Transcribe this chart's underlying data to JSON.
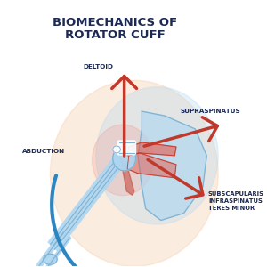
{
  "title_line1": "BIOMECHANICS OF",
  "title_line2": "ROTATOR CUFF",
  "title_color": "#1c2952",
  "title_fontsize": 9.5,
  "title_fontweight": "bold",
  "bg_color": "#ffffff",
  "labels": {
    "deltoid": "DELTOID",
    "supraspinatus": "SUPRASPINATUS",
    "abduction": "ABDUCTION",
    "subscapularis": "SUBSCAPULARIS\nINFRASPINATUS\nTERES MINOR"
  },
  "label_fontsize": 5.2,
  "label_color": "#1c2952",
  "label_fontweight": "bold",
  "red_color": "#c0392b",
  "red_fill": "#e8998d",
  "blue_color": "#2e86c1",
  "bone_fill": "#d6eaf8",
  "bone_outline": "#5d8aa8",
  "scapula_fill": "#d6eaf8",
  "muscle_fill": "#e8998d",
  "bg_circle_color": "#f5cba7",
  "bg_circle2_color": "#d6eaf8"
}
